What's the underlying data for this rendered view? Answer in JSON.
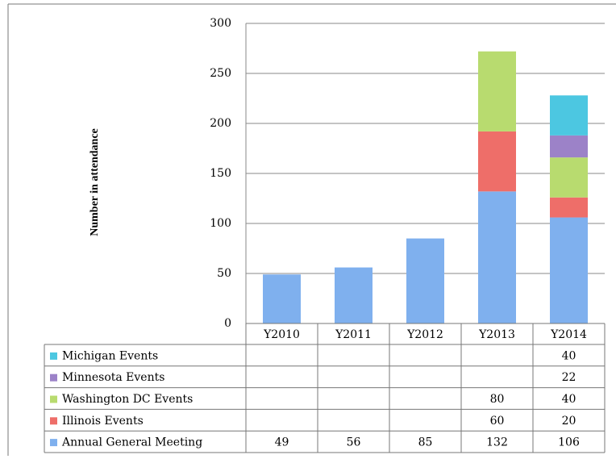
{
  "chart_data": {
    "type": "stacked_bar",
    "y_label": "Number in attendance",
    "categories": [
      "Y2010",
      "Y2011",
      "Y2012",
      "Y2013",
      "Y2014"
    ],
    "series": [
      {
        "name": "Annual General Meeting",
        "color": "#7fb0ee",
        "values": [
          49,
          56,
          85,
          132,
          106
        ]
      },
      {
        "name": "Illinois Events",
        "color": "#ee6e69",
        "values": [
          null,
          null,
          null,
          60,
          20
        ]
      },
      {
        "name": "Washington DC Events",
        "color": "#b8db6f",
        "values": [
          null,
          null,
          null,
          80,
          40
        ]
      },
      {
        "name": "Minnesota Events",
        "color": "#9c82c8",
        "values": [
          null,
          null,
          null,
          null,
          22
        ]
      },
      {
        "name": "Michigan Events",
        "color": "#4cc7e1",
        "values": [
          null,
          null,
          null,
          null,
          40
        ]
      }
    ],
    "ylim": [
      0,
      300
    ],
    "yticks": [
      0,
      50,
      100,
      150,
      200,
      250,
      300
    ],
    "grid": true
  }
}
